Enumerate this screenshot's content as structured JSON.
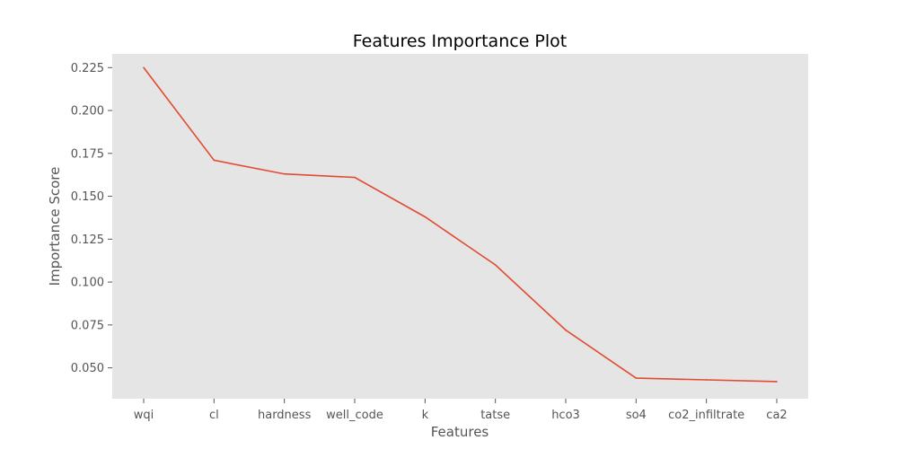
{
  "chart_data": {
    "type": "line",
    "title": "Features Importance Plot",
    "xlabel": "Features",
    "ylabel": "Importance Score",
    "categories": [
      "wqi",
      "cl",
      "hardness",
      "well_code",
      "k",
      "tatse",
      "hco3",
      "so4",
      "co2_infiltrate",
      "ca2"
    ],
    "values": [
      0.225,
      0.171,
      0.163,
      0.161,
      0.138,
      0.11,
      0.072,
      0.044,
      0.043,
      0.042
    ],
    "ylim": [
      0.032,
      0.233
    ],
    "yticks": [
      0.05,
      0.075,
      0.1,
      0.125,
      0.15,
      0.175,
      0.2,
      0.225
    ],
    "ytick_labels": [
      "0.050",
      "0.075",
      "0.100",
      "0.125",
      "0.150",
      "0.175",
      "0.200",
      "0.225"
    ],
    "grid": false,
    "colors": {
      "line": "#E24A33",
      "plot_background": "#E5E5E5",
      "tick_label": "#555555",
      "title": "#000000"
    }
  }
}
